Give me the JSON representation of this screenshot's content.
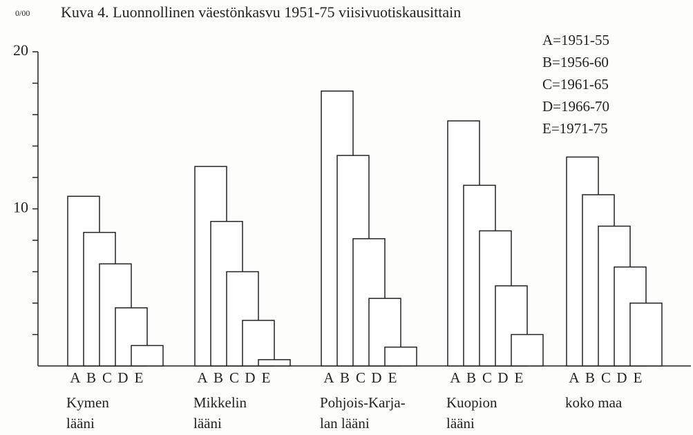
{
  "chart_data": {
    "type": "bar",
    "title": "Kuva 4. Luonnollinen väestönkasvu 1951-75 viisivuotiskausittain",
    "y_unit": "0/00",
    "categories": [
      [
        "Kymen",
        "lääni"
      ],
      [
        "Mikkelin",
        "lääni"
      ],
      [
        "Pohjois-Karja-",
        "lan lääni"
      ],
      [
        "Kuopion",
        "lääni"
      ],
      [
        "koko maa"
      ]
    ],
    "series": [
      {
        "name": "A",
        "legend": "A=1951-55",
        "color": "#ffffff",
        "values": [
          10.8,
          12.7,
          17.5,
          15.6,
          13.3
        ]
      },
      {
        "name": "B",
        "legend": "B=1956-60",
        "color": "#ffffff",
        "values": [
          8.5,
          9.2,
          13.4,
          11.5,
          10.9
        ]
      },
      {
        "name": "C",
        "legend": "C=1961-65",
        "color": "#ffffff",
        "values": [
          6.5,
          6.0,
          8.1,
          8.6,
          8.9
        ]
      },
      {
        "name": "D",
        "legend": "D=1966-70",
        "color": "#ffffff",
        "values": [
          3.7,
          2.9,
          4.3,
          5.1,
          6.3
        ]
      },
      {
        "name": "E",
        "legend": "E=1971-75",
        "color": "#ffffff",
        "values": [
          1.3,
          0.4,
          1.2,
          2.0,
          4.0
        ]
      }
    ],
    "ylim": [
      0,
      20
    ],
    "yticks": [
      10,
      20
    ],
    "minor_yticks": [
      2,
      4,
      6,
      8,
      12,
      14,
      16,
      18
    ],
    "legend_position": "top-right"
  }
}
